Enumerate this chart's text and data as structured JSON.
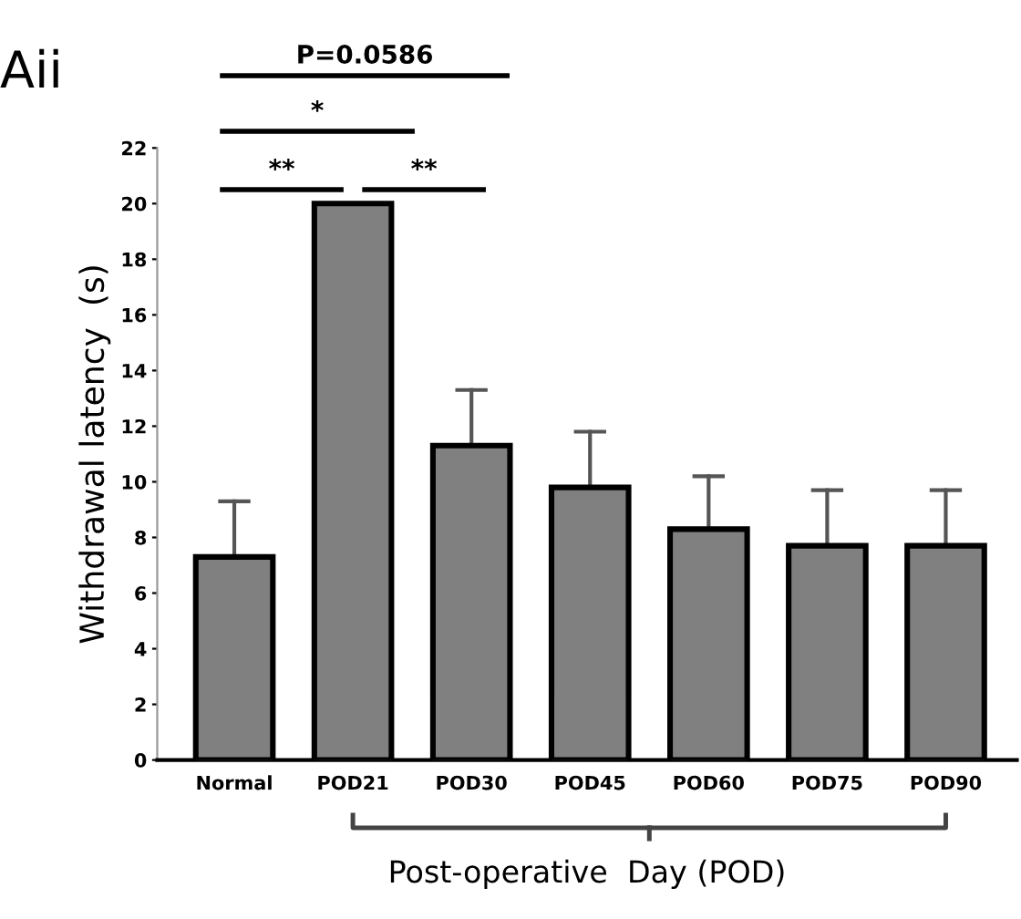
{
  "chart_data": {
    "type": "bar",
    "categories": [
      "Normal",
      "POD21",
      "POD30",
      "POD45",
      "POD60",
      "POD75",
      "POD90"
    ],
    "values": [
      7.3,
      20,
      11.3,
      9.8,
      8.3,
      7.7,
      7.7
    ],
    "errors": [
      [
        7.3,
        9.3
      ],
      null,
      [
        11.3,
        13.3
      ],
      [
        9.8,
        11.8
      ],
      [
        8.3,
        10.2
      ],
      [
        7.7,
        9.7
      ],
      [
        7.7,
        9.7
      ]
    ],
    "color": "#808080",
    "ylabel": "Withdrawal latency  (s)",
    "xlabel": "Post-operative  Day (POD)",
    "ylim": [
      0,
      22
    ],
    "yticks": [
      0,
      2,
      4,
      6,
      8,
      10,
      12,
      14,
      16,
      18,
      20,
      22
    ],
    "grid": false,
    "legend": false,
    "annotations": [
      "Aii",
      "P=0.0586",
      "*",
      "**",
      "**"
    ]
  }
}
